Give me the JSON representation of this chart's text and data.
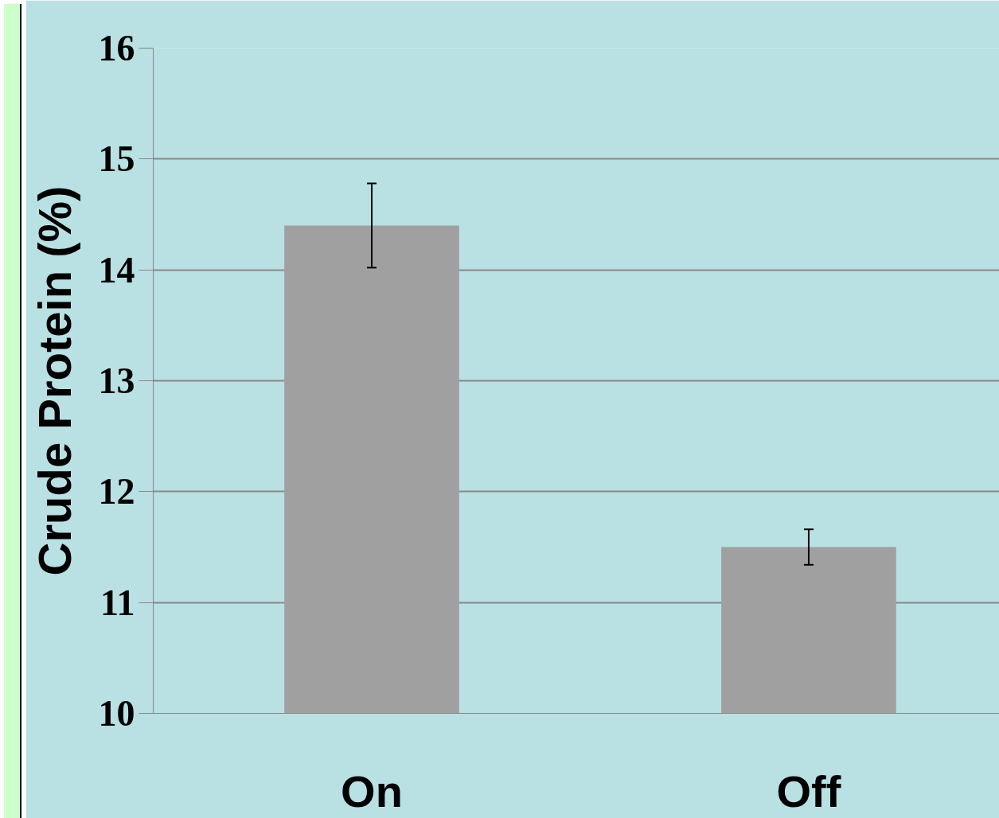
{
  "chart_data": {
    "type": "bar",
    "ylabel": "Crude Protein (%)",
    "categories": [
      "On",
      "Off"
    ],
    "values": [
      14.4,
      11.5
    ],
    "errors": [
      0.38,
      0.16
    ],
    "color": "#a0a0a0",
    "ylim": [
      10,
      16
    ],
    "yticks": [
      10,
      11,
      12,
      13,
      14,
      15,
      16
    ],
    "grid": "y"
  }
}
